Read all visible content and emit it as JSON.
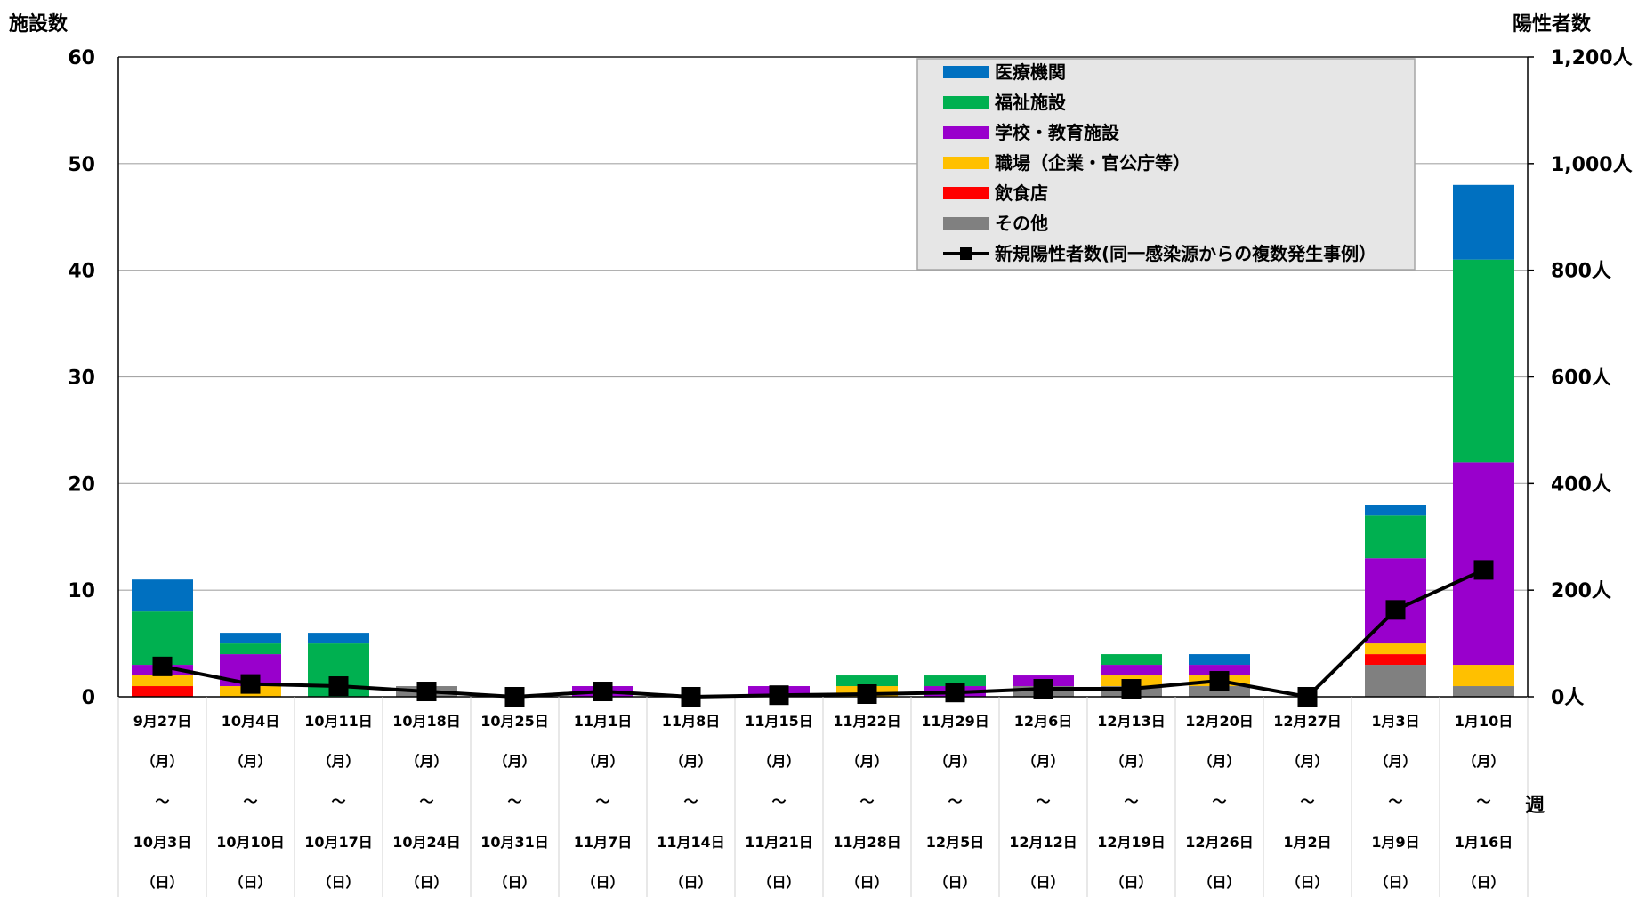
{
  "chart_data": {
    "type": "bar",
    "y_left": {
      "label": "施設数",
      "ticks": [
        "0",
        "10",
        "20",
        "30",
        "40",
        "50",
        "60"
      ],
      "ylim": [
        0,
        60
      ]
    },
    "y_right": {
      "label": "陽性者数",
      "ticks": [
        "0人",
        "200人",
        "400人",
        "600人",
        "800人",
        "1,000人",
        "1,200人"
      ],
      "ylim": [
        0,
        1200
      ]
    },
    "x_label": "週",
    "categories": [
      {
        "start": "9月27日",
        "end": "10月3日"
      },
      {
        "start": "10月4日",
        "end": "10月10日"
      },
      {
        "start": "10月11日",
        "end": "10月17日"
      },
      {
        "start": "10月18日",
        "end": "10月24日"
      },
      {
        "start": "10月25日",
        "end": "10月31日"
      },
      {
        "start": "11月1日",
        "end": "11月7日"
      },
      {
        "start": "11月8日",
        "end": "11月14日"
      },
      {
        "start": "11月15日",
        "end": "11月21日"
      },
      {
        "start": "11月22日",
        "end": "11月28日"
      },
      {
        "start": "11月29日",
        "end": "12月5日"
      },
      {
        "start": "12月6日",
        "end": "12月12日"
      },
      {
        "start": "12月13日",
        "end": "12月19日"
      },
      {
        "start": "12月20日",
        "end": "12月26日"
      },
      {
        "start": "12月27日",
        "end": "1月2日"
      },
      {
        "start": "1月3日",
        "end": "1月9日"
      },
      {
        "start": "1月10日",
        "end": "1月16日"
      }
    ],
    "cat_marks": {
      "mon": "（月）",
      "tilde": "～",
      "sun": "（日）"
    },
    "series": [
      {
        "name": "その他",
        "color": "#808080",
        "values": [
          0,
          0,
          0,
          1,
          0,
          0,
          0,
          0,
          0,
          0,
          1,
          1,
          1,
          0,
          3,
          1
        ]
      },
      {
        "name": "飲食店",
        "color": "#FF0000",
        "values": [
          1,
          0,
          0,
          0,
          0,
          0,
          0,
          0,
          0,
          0,
          0,
          0,
          0,
          0,
          1,
          0
        ]
      },
      {
        "name": "職場（企業・官公庁等）",
        "color": "#FFC000",
        "values": [
          1,
          1,
          0,
          0,
          0,
          0,
          0,
          0,
          1,
          0,
          0,
          1,
          1,
          0,
          1,
          2
        ]
      },
      {
        "name": "学校・教育施設",
        "color": "#9900CC",
        "values": [
          1,
          3,
          0,
          0,
          0,
          1,
          0,
          1,
          0,
          1,
          1,
          1,
          1,
          0,
          8,
          19
        ]
      },
      {
        "name": "福祉施設",
        "color": "#00B050",
        "values": [
          5,
          1,
          5,
          0,
          0,
          0,
          0,
          0,
          1,
          1,
          0,
          1,
          0,
          0,
          4,
          19
        ]
      },
      {
        "name": "医療機関",
        "color": "#0070C0",
        "values": [
          3,
          1,
          1,
          0,
          0,
          0,
          0,
          0,
          0,
          0,
          0,
          0,
          1,
          0,
          1,
          7
        ]
      }
    ],
    "line": {
      "name": "新規陽性者数(同一感染源からの複数発生事例）",
      "axis": "right",
      "color": "#000000",
      "values": [
        57,
        24,
        20,
        10,
        0,
        10,
        0,
        3,
        5,
        8,
        15,
        15,
        30,
        0,
        163,
        238
      ]
    },
    "legend": {
      "position": "top-right",
      "order": [
        "医療機関",
        "福祉施設",
        "学校・教育施設",
        "職場（企業・官公庁等）",
        "飲食店",
        "その他",
        "新規陽性者数(同一感染源からの複数発生事例）"
      ]
    }
  }
}
